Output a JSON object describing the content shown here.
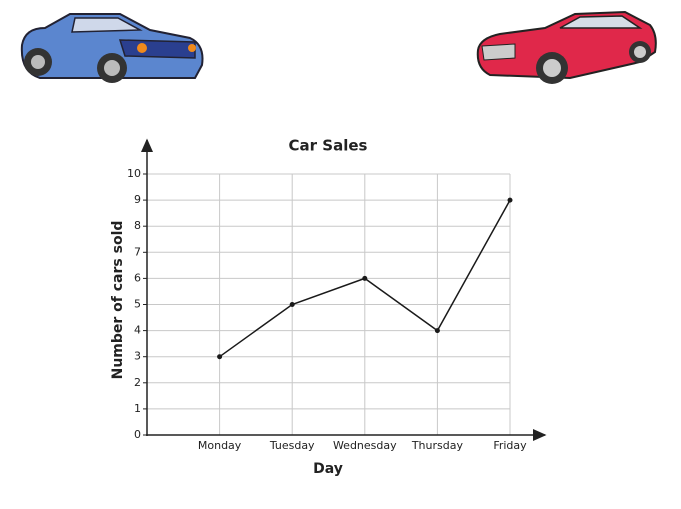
{
  "chart_data": {
    "type": "line",
    "title": "Car Sales",
    "x_label": "Day",
    "y_label": "Number of cars sold",
    "categories": [
      "Monday",
      "Tuesday",
      "Wednesday",
      "Thursday",
      "Friday"
    ],
    "values": [
      3,
      5,
      6,
      4,
      9
    ],
    "color": "#1a1a1a",
    "ylim": [
      0,
      10
    ],
    "yticks": [
      0,
      1,
      2,
      3,
      4,
      5,
      6,
      7,
      8,
      9,
      10
    ],
    "grid": true
  }
}
